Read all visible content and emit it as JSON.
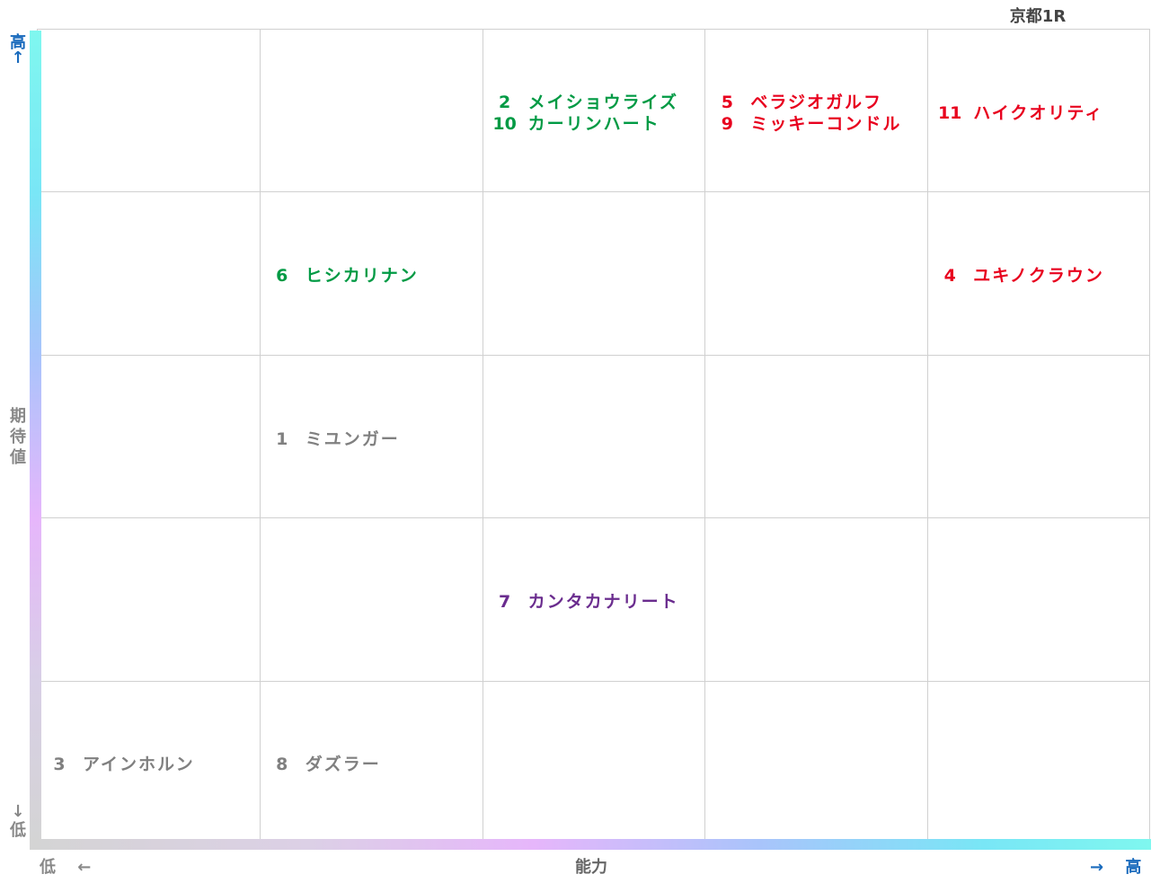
{
  "title": "京都1R",
  "axes": {
    "y_label": "期待値",
    "y_high": "高",
    "y_high_arrow": "↑",
    "y_low": "低",
    "y_low_arrow": "↓",
    "x_label": "能力",
    "x_low": "低",
    "x_low_arrow": "←",
    "x_high": "高",
    "x_high_arrow": "→"
  },
  "colors": {
    "green": "#009a44",
    "red": "#e8001e",
    "gray": "#808080",
    "purple": "#6a2c8e",
    "axis_label_blue": "#1a6bbd",
    "axis_label_gray": "#888888"
  },
  "chart_data": {
    "type": "scatter",
    "title": "京都1R",
    "xlabel": "能力",
    "ylabel": "期待値",
    "grid": true,
    "x_columns": 5,
    "y_rows": 5,
    "points": [
      {
        "number": "2",
        "name": "メイショウライズ",
        "x": 3,
        "y": 5,
        "color": "green"
      },
      {
        "number": "10",
        "name": "カーリンハート",
        "x": 3,
        "y": 5,
        "color": "green"
      },
      {
        "number": "5",
        "name": "ベラジオガルフ",
        "x": 4,
        "y": 5,
        "color": "red"
      },
      {
        "number": "9",
        "name": "ミッキーコンドル",
        "x": 4,
        "y": 5,
        "color": "red"
      },
      {
        "number": "11",
        "name": "ハイクオリティ",
        "x": 5,
        "y": 5,
        "color": "red"
      },
      {
        "number": "6",
        "name": "ヒシカリナン",
        "x": 2,
        "y": 4,
        "color": "green"
      },
      {
        "number": "4",
        "name": "ユキノクラウン",
        "x": 5,
        "y": 4,
        "color": "red"
      },
      {
        "number": "1",
        "name": "ミユンガー",
        "x": 2,
        "y": 3,
        "color": "gray"
      },
      {
        "number": "7",
        "name": "カンタカナリート",
        "x": 3,
        "y": 2,
        "color": "purple"
      },
      {
        "number": "3",
        "name": "アインホルン",
        "x": 1,
        "y": 1,
        "color": "gray"
      },
      {
        "number": "8",
        "name": "ダズラー",
        "x": 2,
        "y": 1,
        "color": "gray"
      }
    ]
  }
}
